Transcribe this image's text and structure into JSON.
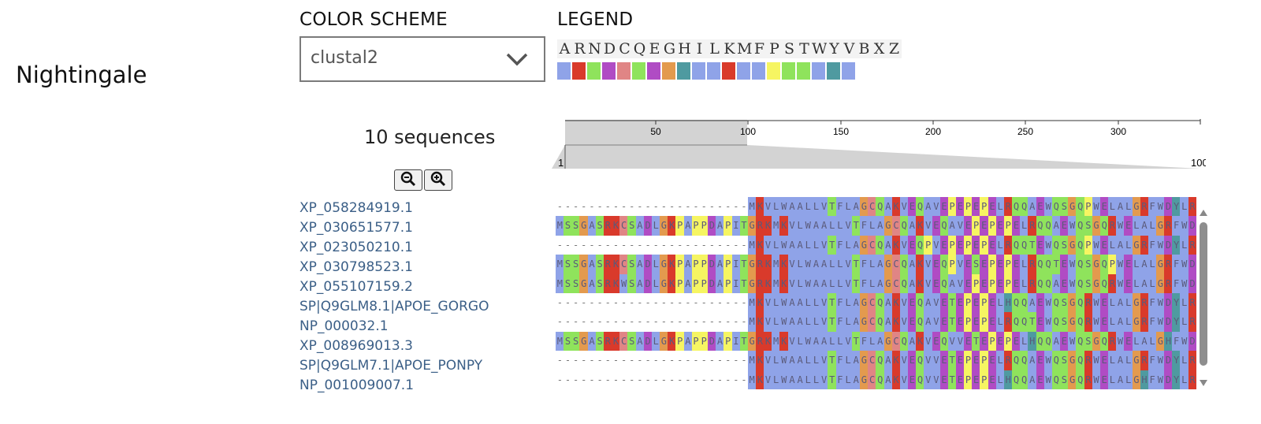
{
  "app": {
    "title": "Nightingale"
  },
  "color_scheme": {
    "label": "COLOR SCHEME",
    "selected": "clustal2"
  },
  "legend": {
    "label": "LEGEND",
    "letters": [
      "A",
      "R",
      "N",
      "D",
      "C",
      "Q",
      "E",
      "G",
      "H",
      "I",
      "L",
      "K",
      "M",
      "F",
      "P",
      "S",
      "T",
      "W",
      "Y",
      "V",
      "B",
      "X",
      "Z"
    ],
    "colors": [
      "#8fa3e8",
      "#d93a2b",
      "#8fe35c",
      "#b04cc4",
      "#e08585",
      "#8fe35c",
      "#b04cc4",
      "#e39a4e",
      "#4f9aa0",
      "#8fa3e8",
      "#8fa3e8",
      "#d93a2b",
      "#8fa3e8",
      "#8fa3e8",
      "#f6f562",
      "#8fe35c",
      "#8fe35c",
      "#8fa3e8",
      "#4f9aa0",
      "#8fa3e8"
    ]
  },
  "sequences": {
    "count_text": "10 sequences",
    "zoom_out_icon": "zoom-out-icon",
    "zoom_in_icon": "zoom-in-icon",
    "labels": [
      "XP_058284919.1",
      "XP_030651577.1",
      "XP_023050210.1",
      "XP_030798523.1",
      "XP_055107159.2",
      "SP|Q9GLM8.1|APOE_GORGO",
      "NP_000032.1",
      "XP_008969013.3",
      "SP|Q9GLM7.1|APOE_PONPY",
      "NP_001009007.1"
    ]
  },
  "navigation": {
    "ticks": [
      "50",
      "100",
      "150",
      "200",
      "250",
      "300"
    ],
    "start": "1",
    "end": "100"
  },
  "alignment": {
    "rows": [
      "------------------------MKVLWAALLVTFLAGCQAKVEQAVEPEPEPELRQQAEWQSGQPWELALGRFWDYLRWVQTLSEQVQEELLS",
      "MSSGASRKCSADLGKPAPPDAPITGRKMKVLWAALLVTFLAGCQAKVEQAVEPEPEPELRQQAEWQSGQRWELALGRFWDYLRWVQALSEQVQEELLS",
      "------------------------MKVLWAALLVTFLAGCQAKVEQPVEPEPEPELRQQTEWQSGQPWELALGRFWDYLRWVQTLSEQVQEELLS",
      "MSSGASRKCSADLGKPAPPDAPITGRKMKVLWAALLVTFLAGCQAKVEQPVESEPEPELRQQTEWQSGQPWELALGRFWDYLRWVQTLSEQVQEELLS",
      "MSSGASRKWSADLGKPAPPDAPITGRKMKVLWAALLVTFLAGCQAKVEQAVEPEPEPELRQQAEWQSGQRWELALGRFWDYLRWVQTLSEQVQEELLS",
      "------------------------MKVLWAALLVTFLAGCQAKVEQAVETEPEPELHQQAEWQSGQRWELALGRFWDYLRWVQTLSEQVQEELLS",
      "------------------------MKVLWAALLVTFLAGCQAKVEQAVETEPEPELRQQTEWQSGQRWELALGRFWDYLRWVQTLSEQVQEELLS",
      "MSSGASRKCSADLGKPAPPDAPITGRKMKVLWAALLVTFLAGCQAKVEQVVETEPEPELHQQAEWQSGQRWELALGHFWDYLRWVQTLSEQVQEELLS",
      "------------------------MKVLWAALLVTFLAGCQAKVEQVVETEPEPELRQQAEWQSGQRWELALGRFWDYLRWVQTLSEQVQEELLS",
      "------------------------MKVLWAALLVTFLAGCQAKVEQVVETEPEPELHQQAEWQSGQRWELALGHFWDYLRWVQTLSEQVQEELLS"
    ],
    "residue_colors": {
      "A": "#8fa3e8",
      "I": "#8fa3e8",
      "L": "#8fa3e8",
      "M": "#8fa3e8",
      "F": "#8fa3e8",
      "W": "#8fa3e8",
      "V": "#8fa3e8",
      "R": "#d93a2b",
      "K": "#d93a2b",
      "N": "#8fe35c",
      "Q": "#8fe35c",
      "S": "#8fe35c",
      "T": "#8fe35c",
      "D": "#b04cc4",
      "E": "#b04cc4",
      "C": "#e08585",
      "G": "#e39a4e",
      "H": "#4f9aa0",
      "Y": "#4f9aa0",
      "P": "#f6f562"
    }
  }
}
